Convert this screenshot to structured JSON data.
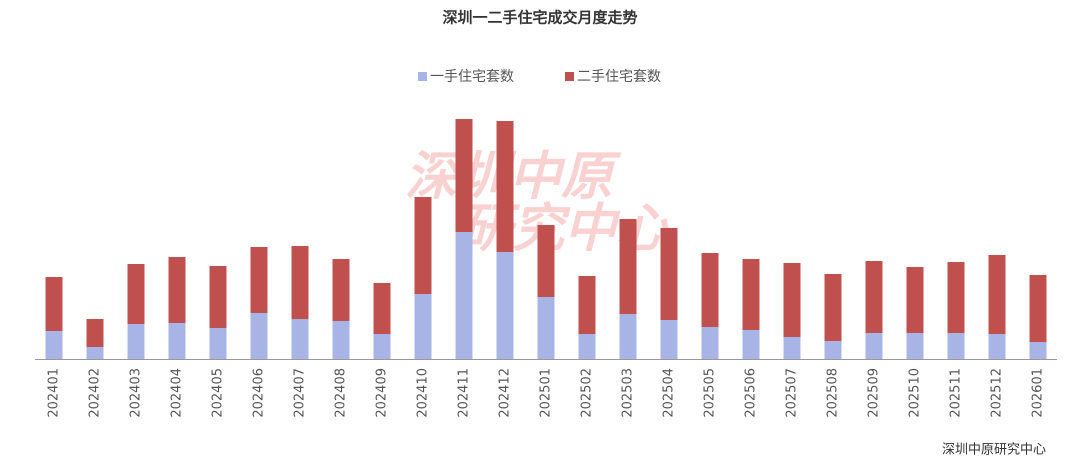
{
  "chart_data": {
    "type": "stacked_bar",
    "title": "深圳一二手住宅成交月度走势",
    "categories": [
      "202401",
      "202402",
      "202403",
      "202404",
      "202405",
      "202406",
      "202407",
      "202408",
      "202409",
      "202410",
      "202411",
      "202412",
      "202501",
      "202502",
      "202503",
      "202504",
      "202505",
      "202506",
      "202507",
      "202508",
      "202509",
      "202510",
      "202511",
      "202512",
      "202601"
    ],
    "series": [
      {
        "name": "一手住宅套数",
        "color": "#a9b4e6",
        "values": [
          1400,
          600,
          1750,
          1800,
          1550,
          2300,
          2000,
          1900,
          1250,
          3250,
          6350,
          5350,
          3100,
          1250,
          2250,
          1950,
          1600,
          1450,
          1100,
          900,
          1300,
          1300,
          1300,
          1250,
          850
        ]
      },
      {
        "name": "二手住宅套数",
        "color": "#c0504d",
        "values": [
          2700,
          1400,
          3000,
          3300,
          3100,
          3300,
          3650,
          3100,
          2550,
          4850,
          5650,
          6550,
          3600,
          2900,
          4750,
          4600,
          3700,
          3550,
          3700,
          3350,
          3600,
          3300,
          3550,
          3950,
          3350
        ]
      }
    ],
    "ylim": [
      0,
      12000
    ],
    "legend": "top",
    "watermark": [
      "深圳中原",
      "研究中心"
    ],
    "source": "深圳中原研究中心"
  }
}
